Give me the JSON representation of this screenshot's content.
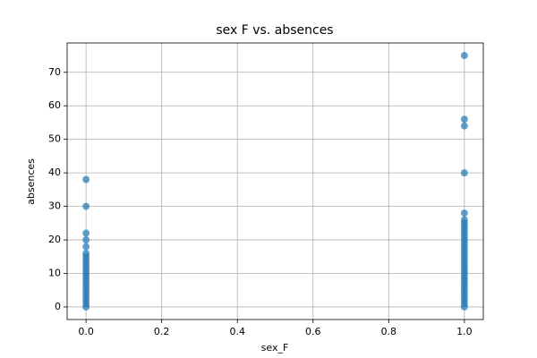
{
  "chart_data": {
    "type": "scatter",
    "title": "sex F vs. absences",
    "xlabel": "sex_F",
    "ylabel": "absences",
    "x": [
      0,
      0,
      0,
      0,
      0,
      0,
      0,
      0,
      0,
      0,
      0,
      0,
      0,
      0,
      0,
      0,
      0,
      0,
      0,
      0,
      0,
      0,
      1,
      1,
      1,
      1,
      1,
      1,
      1,
      1,
      1,
      1,
      1,
      1,
      1,
      1,
      1,
      1,
      1,
      1,
      1,
      1,
      1,
      1,
      1,
      1,
      1,
      1,
      1,
      1,
      1,
      1,
      1,
      1
    ],
    "y": [
      0,
      1,
      2,
      3,
      4,
      5,
      6,
      7,
      8,
      9,
      10,
      11,
      12,
      13,
      14,
      15,
      16,
      18,
      20,
      22,
      30,
      38,
      0,
      1,
      2,
      3,
      4,
      5,
      6,
      7,
      8,
      9,
      10,
      11,
      12,
      13,
      14,
      15,
      16,
      17,
      18,
      19,
      20,
      21,
      22,
      23,
      24,
      25,
      26,
      28,
      40,
      54,
      56,
      75
    ],
    "color": "#1f77b4",
    "xlim": [
      -0.05,
      1.05
    ],
    "xticks": [
      {
        "value": 0,
        "label": "0.0"
      },
      0.2,
      0.4,
      0.6,
      0.8,
      {
        "value": 1,
        "label": "1.0"
      }
    ],
    "ylim": [
      -3.75,
      78.75
    ],
    "yticks": [
      0,
      10,
      20,
      30,
      40,
      50,
      60,
      70
    ],
    "grid": true
  }
}
